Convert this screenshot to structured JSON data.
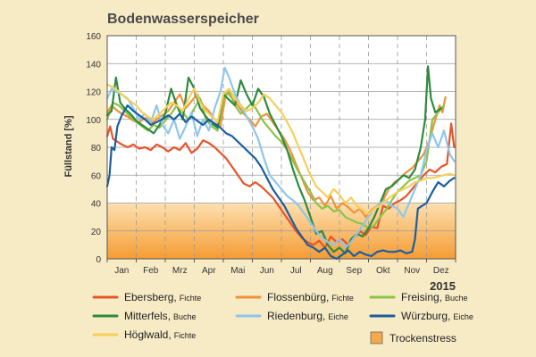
{
  "chart_data": {
    "type": "line",
    "title": "Bodenwasserspeicher",
    "ylabel": "Füllstand [%]",
    "xlabel": "",
    "year_label": "2015",
    "ylim": [
      0,
      160
    ],
    "yticks": [
      0,
      20,
      40,
      60,
      80,
      100,
      120,
      140,
      160
    ],
    "months": [
      "Jan",
      "Feb",
      "Mrz",
      "Apr",
      "Mai",
      "Jun",
      "Jul",
      "Aug",
      "Sep",
      "Okt",
      "Nov",
      "Dez"
    ],
    "x_unit": "month",
    "xlim": [
      0,
      12
    ],
    "grid": "dashed vertical month separators",
    "drought_zone": {
      "label": "Trockenstress",
      "range": [
        0,
        40
      ],
      "color": "#f6a94a"
    },
    "series": [
      {
        "site": "Ebersberg",
        "species": "Fichte",
        "color": "#e8542a",
        "x": [
          0,
          0.1,
          0.2,
          0.35,
          0.5,
          0.7,
          0.9,
          1.1,
          1.3,
          1.5,
          1.7,
          1.9,
          2.1,
          2.3,
          2.5,
          2.7,
          2.9,
          3.1,
          3.3,
          3.5,
          3.7,
          3.9,
          4.1,
          4.3,
          4.5,
          4.7,
          4.9,
          5.1,
          5.3,
          5.5,
          5.7,
          5.9,
          6.1,
          6.3,
          6.5,
          6.7,
          6.9,
          7.1,
          7.3,
          7.5,
          7.7,
          7.9,
          8.1,
          8.3,
          8.5,
          8.7,
          8.9,
          9.1,
          9.3,
          9.5,
          9.7,
          9.9,
          10.1,
          10.3,
          10.5,
          10.7,
          10.9,
          11.1,
          11.3,
          11.5,
          11.7,
          11.85,
          11.95
        ],
        "y": [
          88,
          95,
          86,
          84,
          82,
          80,
          82,
          79,
          80,
          78,
          82,
          80,
          77,
          80,
          78,
          83,
          76,
          79,
          85,
          83,
          80,
          76,
          72,
          66,
          60,
          54,
          52,
          55,
          52,
          48,
          44,
          38,
          32,
          26,
          20,
          15,
          12,
          10,
          13,
          8,
          16,
          12,
          14,
          10,
          15,
          20,
          17,
          23,
          22,
          38,
          36,
          40,
          42,
          45,
          50,
          55,
          60,
          64,
          62,
          66,
          68,
          97,
          80
        ]
      },
      {
        "site": "Flossenbürg",
        "species": "Fichte",
        "color": "#f0923b",
        "x": [
          0,
          0.15,
          0.3,
          0.5,
          0.7,
          0.9,
          1.1,
          1.3,
          1.5,
          1.7,
          1.9,
          2.1,
          2.3,
          2.5,
          2.7,
          2.9,
          3.1,
          3.3,
          3.5,
          3.7,
          3.9,
          4.1,
          4.3,
          4.5,
          4.7,
          4.9,
          5.1,
          5.3,
          5.5,
          5.7,
          5.9,
          6.1,
          6.3,
          6.5,
          6.7,
          6.9,
          7.1,
          7.3,
          7.5,
          7.7,
          7.9,
          8.1,
          8.3,
          8.5,
          8.7,
          8.9,
          9.1,
          9.3,
          9.5,
          9.7,
          9.9,
          10.1,
          10.3,
          10.5,
          10.7,
          10.9,
          11.1,
          11.3,
          11.45,
          11.55,
          11.65
        ],
        "y": [
          105,
          110,
          107,
          104,
          102,
          99,
          98,
          101,
          97,
          100,
          103,
          106,
          112,
          118,
          108,
          113,
          118,
          110,
          106,
          100,
          95,
          120,
          115,
          110,
          104,
          100,
          95,
          102,
          104,
          98,
          92,
          86,
          78,
          68,
          58,
          48,
          42,
          44,
          38,
          45,
          36,
          40,
          37,
          33,
          36,
          30,
          35,
          38,
          42,
          50,
          55,
          58,
          62,
          65,
          70,
          75,
          85,
          100,
          110,
          105,
          116
        ]
      },
      {
        "site": "Freising",
        "species": "Buche",
        "color": "#8bc34a",
        "x": [
          0,
          0.2,
          0.4,
          0.6,
          0.8,
          1.0,
          1.2,
          1.4,
          1.6,
          1.8,
          2.0,
          2.2,
          2.4,
          2.6,
          2.8,
          3.0,
          3.2,
          3.4,
          3.6,
          3.8,
          4.0,
          4.2,
          4.4,
          4.6,
          4.8,
          5.0,
          5.2,
          5.4,
          5.6,
          5.8,
          6.0,
          6.2,
          6.4,
          6.6,
          6.8,
          7.0,
          7.2,
          7.4,
          7.6,
          7.8,
          8.0,
          8.2,
          8.4,
          8.6,
          8.8,
          9.0,
          9.2,
          9.4,
          9.6,
          9.8,
          10.0,
          10.2,
          10.4,
          10.6,
          10.8,
          11.0,
          11.2,
          11.4,
          11.6
        ],
        "y": [
          100,
          112,
          110,
          106,
          102,
          98,
          95,
          92,
          96,
          94,
          99,
          104,
          110,
          105,
          100,
          108,
          115,
          100,
          95,
          92,
          115,
          120,
          110,
          104,
          108,
          112,
          105,
          98,
          93,
          88,
          84,
          78,
          70,
          62,
          55,
          48,
          40,
          36,
          38,
          34,
          35,
          30,
          28,
          26,
          25,
          22,
          24,
          30,
          35,
          42,
          48,
          52,
          56,
          58,
          60,
          70,
          100,
          105,
          110
        ]
      },
      {
        "site": "Mitterfels",
        "species": "Buche",
        "color": "#2e8b3e",
        "x": [
          0,
          0.15,
          0.3,
          0.45,
          0.6,
          0.8,
          1.0,
          1.2,
          1.4,
          1.6,
          1.8,
          2.0,
          2.2,
          2.4,
          2.6,
          2.8,
          3.0,
          3.2,
          3.4,
          3.6,
          3.8,
          4.0,
          4.2,
          4.4,
          4.6,
          4.8,
          5.0,
          5.2,
          5.4,
          5.6,
          5.8,
          6.0,
          6.2,
          6.4,
          6.6,
          6.8,
          7.0,
          7.2,
          7.4,
          7.6,
          7.8,
          8.0,
          8.2,
          8.4,
          8.6,
          8.8,
          9.0,
          9.2,
          9.4,
          9.6,
          9.8,
          10.0,
          10.2,
          10.4,
          10.6,
          10.8,
          10.95,
          11.05,
          11.15,
          11.3,
          11.5
        ],
        "y": [
          103,
          106,
          130,
          112,
          108,
          104,
          99,
          96,
          93,
          90,
          96,
          104,
          122,
          110,
          100,
          130,
          122,
          108,
          102,
          97,
          94,
          118,
          114,
          110,
          128,
          118,
          110,
          122,
          116,
          104,
          96,
          88,
          78,
          64,
          52,
          42,
          30,
          18,
          20,
          10,
          5,
          8,
          4,
          14,
          18,
          16,
          22,
          30,
          40,
          50,
          52,
          56,
          60,
          58,
          64,
          80,
          100,
          138,
          115,
          105,
          108
        ]
      },
      {
        "site": "Riedenburg",
        "species": "Eiche",
        "color": "#8fc6ea",
        "x": [
          0,
          0.15,
          0.3,
          0.5,
          0.7,
          0.9,
          1.1,
          1.3,
          1.5,
          1.7,
          1.9,
          2.1,
          2.3,
          2.5,
          2.7,
          2.9,
          3.1,
          3.3,
          3.5,
          3.7,
          3.9,
          4.05,
          4.2,
          4.4,
          4.6,
          4.8,
          5.0,
          5.2,
          5.4,
          5.6,
          5.8,
          6.0,
          6.2,
          6.4,
          6.6,
          6.8,
          7.0,
          7.2,
          7.4,
          7.6,
          7.8,
          8.0,
          8.2,
          8.4,
          8.6,
          8.8,
          9.0,
          9.2,
          9.4,
          9.6,
          9.8,
          10.0,
          10.2,
          10.4,
          10.6,
          10.8,
          11.0,
          11.2,
          11.4,
          11.6,
          11.8,
          11.95
        ],
        "y": [
          115,
          122,
          120,
          118,
          115,
          108,
          100,
          104,
          98,
          110,
          96,
          90,
          100,
          86,
          95,
          105,
          88,
          100,
          92,
          108,
          120,
          137,
          130,
          118,
          110,
          102,
          95,
          86,
          72,
          60,
          55,
          50,
          45,
          42,
          38,
          32,
          26,
          20,
          15,
          12,
          10,
          14,
          8,
          12,
          18,
          24,
          30,
          36,
          40,
          42,
          38,
          36,
          30,
          40,
          50,
          60,
          78,
          90,
          80,
          92,
          75,
          70
        ]
      },
      {
        "site": "Würzburg",
        "species": "Eiche",
        "color": "#1b5e9e",
        "x": [
          0,
          0.08,
          0.15,
          0.25,
          0.35,
          0.5,
          0.7,
          0.9,
          1.1,
          1.3,
          1.5,
          1.7,
          1.9,
          2.1,
          2.3,
          2.5,
          2.7,
          2.9,
          3.1,
          3.3,
          3.5,
          3.7,
          3.9,
          4.1,
          4.3,
          4.5,
          4.7,
          4.9,
          5.1,
          5.3,
          5.5,
          5.7,
          5.9,
          6.1,
          6.3,
          6.5,
          6.7,
          6.9,
          7.1,
          7.3,
          7.5,
          7.7,
          7.9,
          8.1,
          8.3,
          8.5,
          8.7,
          8.9,
          9.1,
          9.3,
          9.5,
          9.7,
          9.9,
          10.1,
          10.3,
          10.5,
          10.6,
          10.7,
          10.85,
          11.0,
          11.2,
          11.4,
          11.6,
          11.8,
          11.95
        ],
        "y": [
          52,
          60,
          80,
          78,
          95,
          103,
          110,
          106,
          103,
          100,
          96,
          98,
          100,
          103,
          100,
          104,
          98,
          102,
          99,
          96,
          100,
          97,
          94,
          90,
          88,
          84,
          80,
          76,
          72,
          66,
          58,
          50,
          44,
          38,
          30,
          22,
          16,
          10,
          8,
          5,
          8,
          2,
          0,
          3,
          6,
          2,
          5,
          3,
          2,
          5,
          6,
          5,
          5,
          6,
          4,
          5,
          14,
          36,
          38,
          40,
          48,
          55,
          52,
          56,
          58
        ]
      },
      {
        "site": "Höglwald",
        "species": "Fichte",
        "color": "#f5cf5a",
        "x": [
          0,
          0.2,
          0.4,
          0.6,
          0.8,
          1.0,
          1.2,
          1.4,
          1.6,
          1.8,
          2.0,
          2.2,
          2.4,
          2.6,
          2.8,
          3.0,
          3.2,
          3.4,
          3.6,
          3.8,
          4.0,
          4.2,
          4.4,
          4.6,
          4.8,
          5.0,
          5.2,
          5.4,
          5.6,
          5.8,
          6.0,
          6.2,
          6.4,
          6.6,
          6.8,
          7.0,
          7.2,
          7.4,
          7.6,
          7.8,
          8.0,
          8.2,
          8.4,
          8.6,
          8.8,
          9.0,
          9.2,
          9.4,
          9.6,
          9.8,
          10.0,
          10.2,
          10.4,
          10.6,
          10.8,
          11.0,
          11.2,
          11.4,
          11.6,
          11.8,
          11.95
        ],
        "y": [
          125,
          123,
          120,
          116,
          113,
          110,
          105,
          102,
          100,
          104,
          108,
          112,
          110,
          106,
          115,
          122,
          112,
          106,
          102,
          98,
          118,
          122,
          115,
          110,
          106,
          108,
          112,
          118,
          115,
          110,
          105,
          98,
          90,
          80,
          70,
          60,
          52,
          48,
          44,
          50,
          46,
          40,
          44,
          38,
          35,
          32,
          36,
          38,
          42,
          45,
          48,
          50,
          52,
          55,
          56,
          58,
          58,
          59,
          60,
          61,
          60
        ]
      }
    ]
  },
  "legend": {
    "items": [
      {
        "site": "Ebersberg,",
        "species": "Fichte",
        "color": "#e8542a"
      },
      {
        "site": "Flossenbürg,",
        "species": "Fichte",
        "color": "#f0923b"
      },
      {
        "site": "Freising,",
        "species": "Buche",
        "color": "#8bc34a"
      },
      {
        "site": "Mitterfels,",
        "species": "Buche",
        "color": "#2e8b3e"
      },
      {
        "site": "Riedenburg,",
        "species": "Eiche",
        "color": "#8fc6ea"
      },
      {
        "site": "Würzburg,",
        "species": "Eiche",
        "color": "#1b5e9e"
      },
      {
        "site": "Höglwald,",
        "species": "Fichte",
        "color": "#f5cf5a"
      }
    ],
    "drought_label": "Trockenstress"
  }
}
